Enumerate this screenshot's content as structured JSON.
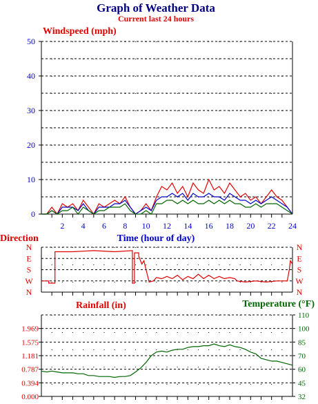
{
  "header": {
    "title": "Graph of Weather Data",
    "subtitle": "Current last 24 hours"
  },
  "colors": {
    "title": "#000080",
    "red": "#e00000",
    "blue": "#0000c8",
    "green": "#006400"
  },
  "chart_data": [
    {
      "type": "line",
      "title": "Windspeed (mph)",
      "xlabel": "Time (hour of day)",
      "ylabel": "",
      "xlim": [
        0,
        24
      ],
      "ylim": [
        0,
        50
      ],
      "y_ticks": [
        "0",
        "10",
        "20",
        "30",
        "40",
        "50"
      ],
      "x_ticks": [
        "2",
        "4",
        "6",
        "8",
        "10",
        "12",
        "14",
        "16",
        "18",
        "20",
        "22",
        "24"
      ],
      "grid": true,
      "series": [
        {
          "color": "#e00000",
          "x": [
            0,
            0.5,
            1,
            1.5,
            2,
            2.5,
            3,
            3.5,
            4,
            4.5,
            5,
            5.5,
            6,
            6.5,
            7,
            7.5,
            8,
            8.5,
            9,
            9.5,
            10,
            10.5,
            11,
            11.5,
            12,
            12.5,
            13,
            13.5,
            14,
            14.5,
            15,
            15.5,
            16,
            16.5,
            17,
            17.5,
            18,
            18.5,
            19,
            19.5,
            20,
            20.5,
            21,
            21.5,
            22,
            22.5,
            23,
            23.5,
            24
          ],
          "values": [
            0,
            0,
            2,
            0,
            3,
            2,
            3,
            1,
            4,
            2,
            0,
            3,
            2,
            3,
            4,
            3,
            5,
            2,
            0,
            1,
            3,
            1,
            5,
            8,
            7,
            9,
            6,
            8,
            5,
            9,
            7,
            6,
            10,
            7,
            8,
            6,
            9,
            7,
            5,
            6,
            4,
            5,
            3,
            5,
            7,
            5,
            4,
            2,
            0
          ]
        },
        {
          "color": "#0000c8",
          "x": [
            0,
            0.5,
            1,
            1.5,
            2,
            2.5,
            3,
            3.5,
            4,
            4.5,
            5,
            5.5,
            6,
            6.5,
            7,
            7.5,
            8,
            8.5,
            9,
            9.5,
            10,
            10.5,
            11,
            11.5,
            12,
            12.5,
            13,
            13.5,
            14,
            14.5,
            15,
            15.5,
            16,
            16.5,
            17,
            17.5,
            18,
            18.5,
            19,
            19.5,
            20,
            20.5,
            21,
            21.5,
            22,
            22.5,
            23,
            23.5,
            24
          ],
          "values": [
            0,
            0,
            1,
            0,
            2,
            2,
            2,
            1,
            3,
            1,
            0,
            2,
            2,
            2,
            3,
            3,
            4,
            2,
            0,
            1,
            2,
            1,
            4,
            5,
            5,
            6,
            5,
            6,
            4,
            6,
            5,
            5,
            6,
            5,
            5,
            4,
            6,
            5,
            4,
            4,
            3,
            4,
            3,
            4,
            5,
            4,
            3,
            2,
            0
          ]
        },
        {
          "color": "#006400",
          "x": [
            0,
            0.5,
            1,
            1.5,
            2,
            2.5,
            3,
            3.5,
            4,
            4.5,
            5,
            5.5,
            6,
            6.5,
            7,
            7.5,
            8,
            8.5,
            9,
            9.5,
            10,
            10.5,
            11,
            11.5,
            12,
            12.5,
            13,
            13.5,
            14,
            14.5,
            15,
            15.5,
            16,
            16.5,
            17,
            17.5,
            18,
            18.5,
            19,
            19.5,
            20,
            20.5,
            21,
            21.5,
            22,
            22.5,
            23,
            23.5,
            24
          ],
          "values": [
            0,
            0,
            1,
            0,
            1,
            1,
            2,
            0,
            2,
            1,
            0,
            1,
            1,
            2,
            2,
            2,
            3,
            1,
            0,
            0,
            1,
            0,
            3,
            3,
            4,
            4,
            3,
            4,
            3,
            4,
            3,
            3,
            4,
            3,
            4,
            3,
            4,
            3,
            3,
            2,
            2,
            3,
            2,
            3,
            3,
            3,
            2,
            1,
            0
          ]
        }
      ]
    },
    {
      "type": "line",
      "title": "Direction",
      "xlim": [
        0,
        24
      ],
      "y_categories": [
        "N",
        "W",
        "S",
        "E",
        "N"
      ],
      "grid": true,
      "series": [
        {
          "color": "#e00000",
          "x": [
            0,
            0.7,
            0.7,
            1.3,
            1.3,
            3,
            5,
            7,
            8.7,
            8.7,
            8.9,
            8.9,
            9.3,
            9.3,
            9.6,
            9.8,
            10,
            10.3,
            10.7,
            11,
            11.5,
            12,
            12.5,
            13,
            13.5,
            14,
            14.5,
            15,
            15.5,
            16,
            16.5,
            17,
            17.5,
            18,
            18.5,
            18.7,
            19.5,
            20.5,
            21.5,
            22.5,
            23.5,
            23.7,
            23.8,
            24
          ],
          "values": [
            1,
            1,
            0.8,
            0.8,
            3.6,
            3.6,
            3.7,
            3.6,
            3.7,
            0.8,
            0.8,
            3.5,
            3.5,
            3.2,
            2.5,
            2.8,
            2.0,
            0.9,
            1.0,
            1.3,
            1.2,
            1.4,
            1.2,
            1.5,
            1.1,
            1.4,
            1.2,
            1.6,
            1.2,
            1.5,
            1.2,
            1.4,
            1.2,
            1.3,
            1.2,
            1.0,
            0.9,
            1.0,
            0.9,
            1.0,
            1.0,
            2.0,
            2.8,
            2.5
          ]
        }
      ]
    },
    {
      "type": "line",
      "title": "Rainfall (in)",
      "xlim": [
        0,
        24
      ],
      "ylim": [
        0,
        2.362
      ],
      "y_ticks": [
        "0.000",
        "0.394",
        "0.787",
        "1.181",
        "1.575",
        "1.969"
      ],
      "y2_title": "Temperature (°F)",
      "y2lim": [
        32,
        110
      ],
      "y2_ticks": [
        "32",
        "45",
        "60",
        "70",
        "85",
        "100",
        "110"
      ],
      "grid": true,
      "series": [
        {
          "color": "#006400",
          "axis": "y2",
          "x": [
            0,
            0.5,
            1,
            1.5,
            2,
            2.5,
            3,
            3.5,
            4,
            4.5,
            5,
            5.5,
            6,
            6.5,
            7,
            7.5,
            8,
            8.5,
            9,
            9.5,
            10,
            10.5,
            11,
            11.5,
            12,
            12.5,
            13,
            13.5,
            14,
            14.5,
            15,
            15.5,
            16,
            16.5,
            17,
            17.5,
            18,
            18.5,
            19,
            19.5,
            20,
            20.5,
            21,
            21.5,
            22,
            22.5,
            23,
            23.5,
            24
          ],
          "values": [
            58,
            57,
            58,
            57,
            56,
            56,
            56,
            55,
            55,
            53,
            53,
            52,
            52,
            52,
            51,
            52,
            52,
            53,
            57,
            61,
            65,
            70,
            74,
            75,
            74,
            76,
            77,
            77,
            79,
            80,
            80,
            81,
            81,
            83,
            81,
            80,
            82,
            80,
            79,
            77,
            74,
            72,
            68,
            67,
            66,
            66,
            65,
            64,
            63
          ]
        }
      ]
    }
  ]
}
